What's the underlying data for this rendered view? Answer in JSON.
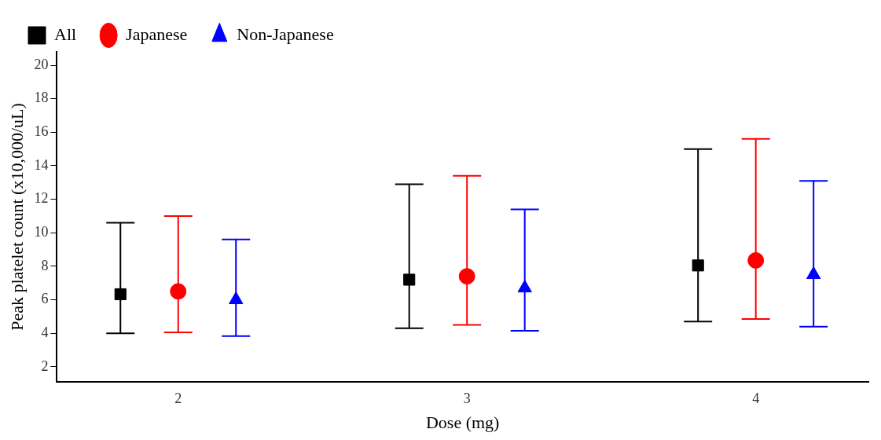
{
  "chart_data": {
    "type": "scatter",
    "xlabel": "Dose (mg)",
    "ylabel": "Peak platelet count (x10,000/uL)",
    "categories": [
      "2",
      "3",
      "4"
    ],
    "ylim": [
      1.1,
      20.8
    ],
    "yticks": [
      2,
      4,
      6,
      8,
      10,
      12,
      14,
      16,
      18,
      20
    ],
    "grid": false,
    "legend": "top left",
    "series": [
      {
        "name": "All",
        "color": "#000000",
        "marker": "square",
        "values": [
          6.33,
          7.2,
          8.05
        ],
        "errors": [
          [
            4.0,
            10.6
          ],
          [
            4.3,
            12.9
          ],
          [
            4.7,
            15.0
          ]
        ]
      },
      {
        "name": "Japanese",
        "color": "#ff0000",
        "marker": "circle",
        "values": [
          6.5,
          7.4,
          8.35
        ],
        "errors": [
          [
            4.05,
            11.0
          ],
          [
            4.5,
            13.4
          ],
          [
            4.85,
            15.6
          ]
        ]
      },
      {
        "name": "Non-Japanese",
        "color": "#0000ff",
        "marker": "triangle",
        "values": [
          6.0,
          6.7,
          7.5
        ],
        "errors": [
          [
            3.83,
            9.6
          ],
          [
            4.15,
            11.4
          ],
          [
            4.4,
            13.1
          ]
        ]
      }
    ]
  }
}
